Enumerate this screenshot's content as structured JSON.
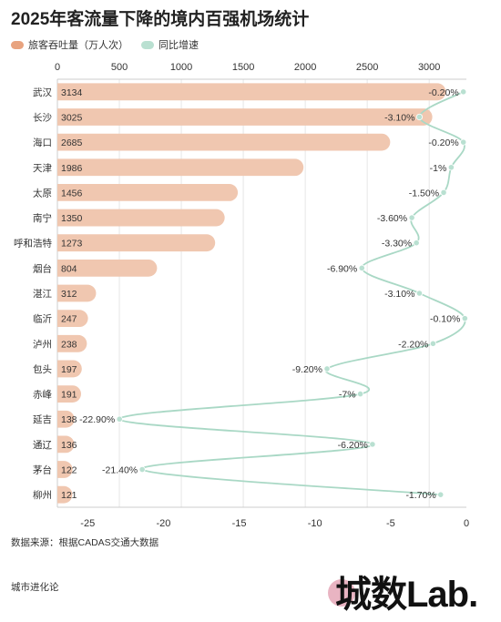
{
  "title": "2025年客流量下降的境内百强机场统计",
  "legend": {
    "bar_label": "旅客吞吐量（万人次）",
    "line_label": "同比增速"
  },
  "colors": {
    "bar": "#f0c7b0",
    "bar_legend": "#e8a37f",
    "line": "#a9d8c5",
    "line_dot": "#b9e0d1",
    "grid": "#e6e6e6",
    "text": "#333333"
  },
  "chart_data": {
    "type": "bar",
    "categories": [
      "武汉",
      "长沙",
      "海口",
      "天津",
      "太原",
      "南宁",
      "呼和浩特",
      "烟台",
      "湛江",
      "临沂",
      "泸州",
      "包头",
      "赤峰",
      "延吉",
      "通辽",
      "茅台",
      "柳州"
    ],
    "series": [
      {
        "name": "旅客吞吐量（万人次）",
        "type": "bar",
        "axis": "top",
        "values": [
          3134,
          3025,
          2685,
          1986,
          1456,
          1350,
          1273,
          804,
          312,
          247,
          238,
          197,
          191,
          138,
          136,
          122,
          121
        ],
        "value_labels": [
          "3134",
          "3025",
          "2685",
          "1986",
          "1456",
          "1350",
          "1273",
          "804",
          "312",
          "247",
          "238",
          "197",
          "191",
          "138",
          "136",
          "122",
          "121"
        ]
      },
      {
        "name": "同比增速",
        "type": "line",
        "axis": "bottom",
        "values": [
          -0.2,
          -3.1,
          -0.2,
          -1,
          -1.5,
          -3.6,
          -3.3,
          -6.9,
          -3.1,
          -0.1,
          -2.2,
          -9.2,
          -7,
          -22.9,
          -6.2,
          -21.4,
          -1.7
        ],
        "value_labels": [
          "-0.20%",
          "-3.10%",
          "-0.20%",
          "-1%",
          "-1.50%",
          "-3.60%",
          "-3.30%",
          "-6.90%",
          "-3.10%",
          "-0.10%",
          "-2.20%",
          "-9.20%",
          "-7%",
          "-22.90%",
          "-6.20%",
          "-21.40%",
          "-1.70%"
        ]
      }
    ],
    "top_axis": {
      "range": [
        0,
        3300
      ],
      "ticks": [
        0,
        500,
        1000,
        1500,
        2000,
        2500,
        3000
      ]
    },
    "bottom_axis": {
      "range": [
        -27,
        0
      ],
      "ticks": [
        -25,
        -20,
        -15,
        -10,
        -5,
        0
      ]
    },
    "grid": true,
    "legend_position": "top-left"
  },
  "footer": {
    "source": "数据来源：根据CADAS交通大数据",
    "brand": "城市进化论",
    "logo_text": "城数Lab."
  }
}
